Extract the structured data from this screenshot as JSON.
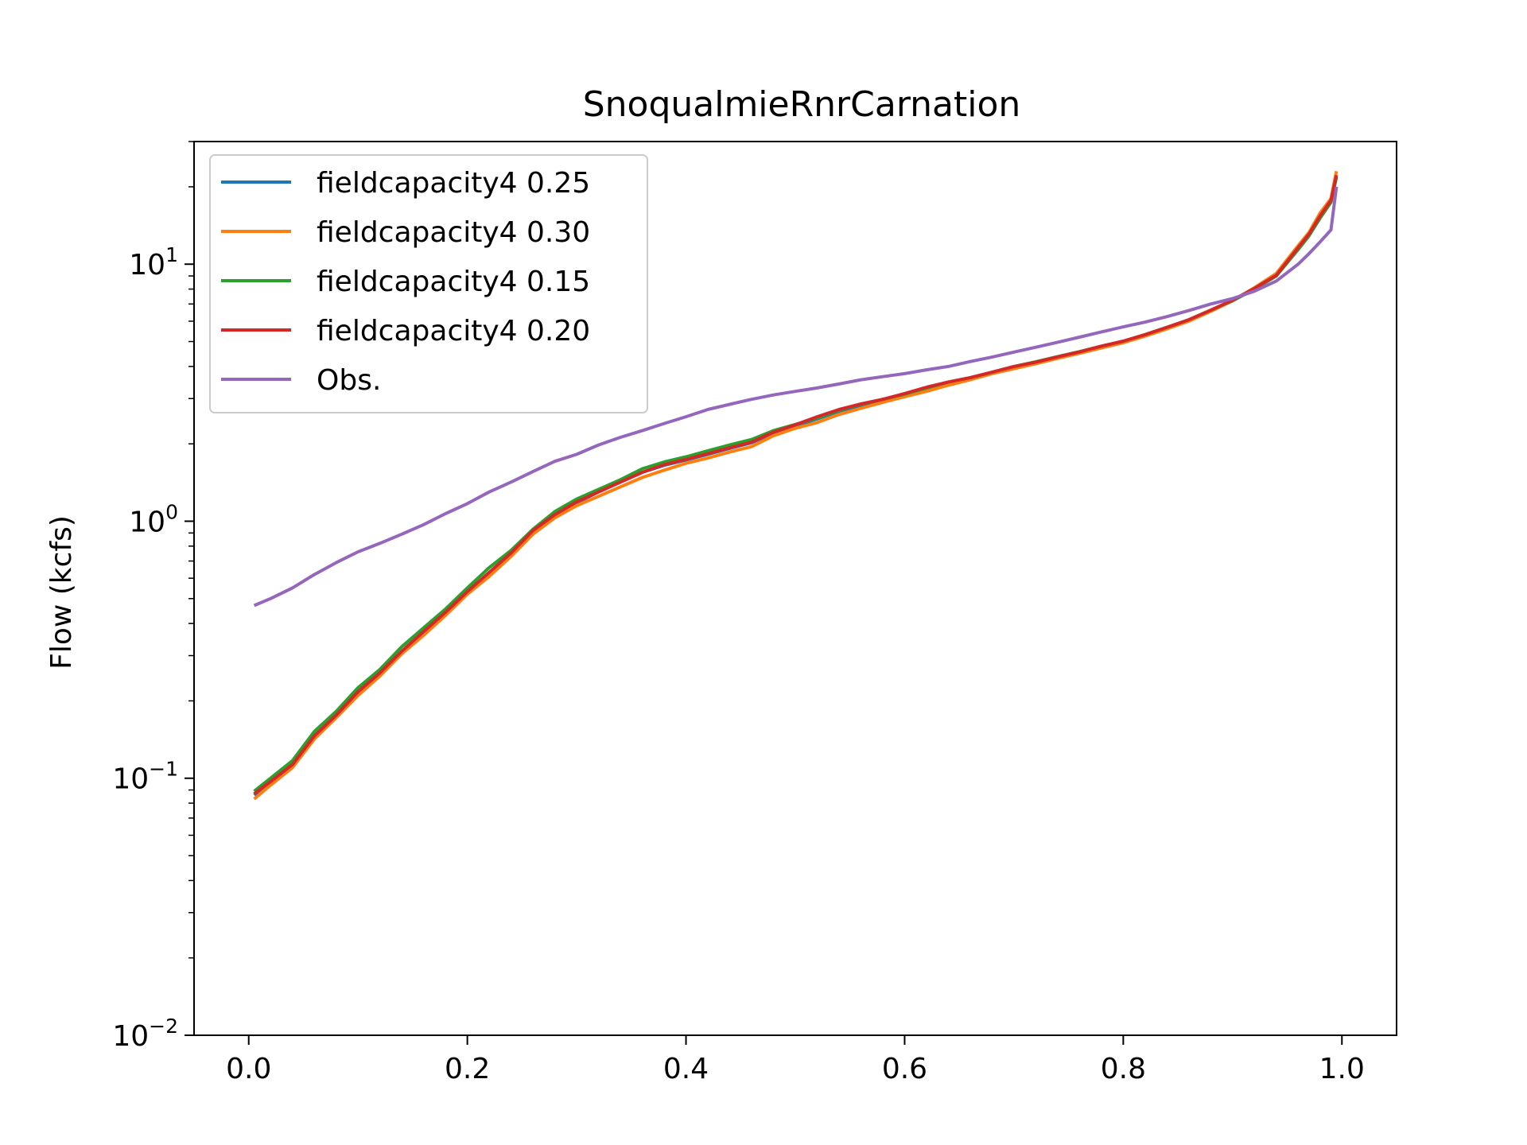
{
  "chart_data": {
    "type": "line",
    "title": "SnoqualmieRnrCarnation",
    "xlabel": "",
    "ylabel": "Flow (kcfs)",
    "yscale": "log",
    "xlim": [
      -0.05,
      1.05
    ],
    "ylim": [
      0.01,
      30
    ],
    "grid": false,
    "legend_position": "upper-left",
    "x_ticks": [
      {
        "value": 0.0,
        "label": "0.0"
      },
      {
        "value": 0.2,
        "label": "0.2"
      },
      {
        "value": 0.4,
        "label": "0.4"
      },
      {
        "value": 0.6,
        "label": "0.6"
      },
      {
        "value": 0.8,
        "label": "0.8"
      },
      {
        "value": 1.0,
        "label": "1.0"
      }
    ],
    "y_ticks": [
      {
        "value": 0.01,
        "base": "10",
        "exp": "−2"
      },
      {
        "value": 0.1,
        "base": "10",
        "exp": "−1"
      },
      {
        "value": 1,
        "base": "10",
        "exp": "0"
      },
      {
        "value": 10,
        "base": "10",
        "exp": "1"
      }
    ],
    "x": [
      0.005,
      0.02,
      0.04,
      0.06,
      0.08,
      0.1,
      0.12,
      0.14,
      0.16,
      0.18,
      0.2,
      0.22,
      0.24,
      0.26,
      0.28,
      0.3,
      0.32,
      0.34,
      0.36,
      0.38,
      0.4,
      0.42,
      0.44,
      0.46,
      0.48,
      0.5,
      0.52,
      0.54,
      0.56,
      0.58,
      0.6,
      0.62,
      0.64,
      0.66,
      0.68,
      0.7,
      0.72,
      0.74,
      0.76,
      0.78,
      0.8,
      0.82,
      0.84,
      0.86,
      0.88,
      0.9,
      0.92,
      0.94,
      0.96,
      0.97,
      0.98,
      0.99,
      0.995
    ],
    "series": [
      {
        "name": "fieldcapacity4 0.25",
        "color": "#1f77b4",
        "values": [
          0.086,
          0.096,
          0.112,
          0.145,
          0.175,
          0.215,
          0.255,
          0.31,
          0.37,
          0.44,
          0.53,
          0.63,
          0.75,
          0.92,
          1.06,
          1.18,
          1.3,
          1.42,
          1.55,
          1.65,
          1.73,
          1.82,
          1.92,
          2.02,
          2.2,
          2.35,
          2.5,
          2.68,
          2.82,
          2.95,
          3.1,
          3.28,
          3.45,
          3.6,
          3.78,
          3.98,
          4.15,
          4.35,
          4.55,
          4.78,
          5.0,
          5.3,
          5.65,
          6.05,
          6.6,
          7.2,
          8.0,
          9.0,
          11.5,
          13.0,
          15.2,
          17.5,
          22.0
        ]
      },
      {
        "name": "fieldcapacity4 0.30",
        "color": "#ff7f0e",
        "values": [
          0.083,
          0.094,
          0.11,
          0.142,
          0.172,
          0.21,
          0.25,
          0.305,
          0.36,
          0.43,
          0.52,
          0.61,
          0.73,
          0.89,
          1.03,
          1.15,
          1.25,
          1.36,
          1.48,
          1.58,
          1.68,
          1.76,
          1.86,
          1.95,
          2.15,
          2.3,
          2.42,
          2.6,
          2.75,
          2.9,
          3.05,
          3.2,
          3.38,
          3.55,
          3.75,
          3.92,
          4.1,
          4.3,
          4.5,
          4.72,
          4.95,
          5.25,
          5.6,
          6.0,
          6.55,
          7.2,
          8.1,
          9.2,
          11.8,
          13.3,
          15.8,
          18.0,
          23.0
        ]
      },
      {
        "name": "fieldcapacity4 0.15",
        "color": "#2ca02c",
        "values": [
          0.089,
          0.1,
          0.117,
          0.152,
          0.182,
          0.225,
          0.265,
          0.325,
          0.385,
          0.455,
          0.55,
          0.66,
          0.77,
          0.93,
          1.09,
          1.22,
          1.33,
          1.45,
          1.6,
          1.7,
          1.78,
          1.88,
          1.98,
          2.08,
          2.25,
          2.38,
          2.52,
          2.7,
          2.85,
          2.98,
          3.12,
          3.3,
          3.48,
          3.62,
          3.8,
          4.0,
          4.17,
          4.37,
          4.57,
          4.8,
          5.02,
          5.32,
          5.68,
          6.08,
          6.62,
          7.22,
          8.0,
          9.0,
          11.4,
          12.9,
          15.1,
          17.4,
          21.8
        ]
      },
      {
        "name": "fieldcapacity4 0.20",
        "color": "#d62728",
        "values": [
          0.087,
          0.097,
          0.113,
          0.146,
          0.176,
          0.217,
          0.257,
          0.312,
          0.372,
          0.442,
          0.532,
          0.632,
          0.752,
          0.92,
          1.06,
          1.19,
          1.3,
          1.42,
          1.55,
          1.66,
          1.74,
          1.83,
          1.93,
          2.03,
          2.22,
          2.37,
          2.55,
          2.72,
          2.86,
          2.98,
          3.14,
          3.32,
          3.48,
          3.62,
          3.8,
          4.0,
          4.16,
          4.36,
          4.56,
          4.8,
          5.02,
          5.32,
          5.68,
          6.08,
          6.62,
          7.25,
          8.05,
          9.05,
          11.6,
          13.1,
          15.4,
          17.7,
          22.2
        ]
      },
      {
        "name": "Obs.",
        "color": "#9467bd",
        "values": [
          0.47,
          0.5,
          0.55,
          0.62,
          0.69,
          0.76,
          0.82,
          0.89,
          0.97,
          1.07,
          1.17,
          1.3,
          1.42,
          1.56,
          1.71,
          1.82,
          1.98,
          2.12,
          2.25,
          2.4,
          2.55,
          2.72,
          2.85,
          2.98,
          3.1,
          3.2,
          3.3,
          3.42,
          3.55,
          3.65,
          3.75,
          3.88,
          4.0,
          4.18,
          4.35,
          4.55,
          4.75,
          4.97,
          5.2,
          5.45,
          5.7,
          5.95,
          6.25,
          6.6,
          7.0,
          7.35,
          7.85,
          8.6,
          10.0,
          11.0,
          12.2,
          13.6,
          20.0
        ]
      }
    ]
  }
}
